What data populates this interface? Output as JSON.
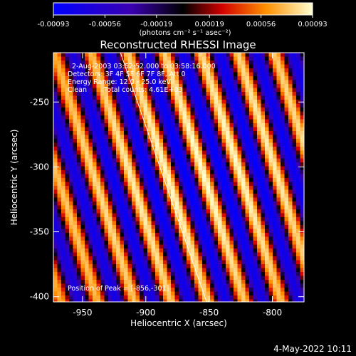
{
  "chart_data": {
    "type": "heatmap",
    "title": "Reconstructed RHESSI Image",
    "xlabel": "Heliocentric X (arcsec)",
    "ylabel": "Heliocentric Y (arcsec)",
    "xlim": [
      -973,
      -775
    ],
    "ylim": [
      -404,
      -212
    ],
    "x_ticks": [
      -950,
      -900,
      -850,
      -800
    ],
    "x_tick_labels": [
      "-950",
      "-900",
      "-850",
      "-800"
    ],
    "y_ticks": [
      -250,
      -300,
      -350,
      -400
    ],
    "y_tick_labels": [
      "-250",
      "-300",
      "-350",
      "-400"
    ],
    "colorbar": {
      "range": [
        -0.00093,
        0.00093
      ],
      "ticks": [
        -0.00093,
        -0.00056,
        -0.00019,
        0.00019,
        0.00056,
        0.00093
      ],
      "tick_labels": [
        "-0.00093",
        "-0.00056",
        "-0.00019",
        "0.00019",
        "0.00056",
        "0.00093"
      ],
      "unit_label": "(photons cm⁻² s⁻¹ asec⁻²)"
    },
    "stripes": {
      "orientation": "diagonal",
      "peak_value": 0.00093,
      "peak_position": [
        -856,
        -301
      ],
      "period_arcsec": 29
    },
    "limb_line": [
      [
        -920,
        -212
      ],
      [
        -852,
        -404
      ]
    ],
    "annotations": {
      "time_range": "2-Aug-2003 03:52:52.000 to 03:58:16.000",
      "detectors": "Detectors: 3F 4F 5F 6F 7F 8F, Att 0",
      "energy": "Energy Range: 12.0 - 25.0 keV",
      "method": "Clean",
      "counts": "Total counts: 4.61E+03",
      "peak": "Position of Peak = [-856,-301]"
    },
    "colors": {
      "background": "#000000",
      "axes": "#ffffff"
    }
  },
  "footer": {
    "date": "4-May-2022 10:11"
  }
}
